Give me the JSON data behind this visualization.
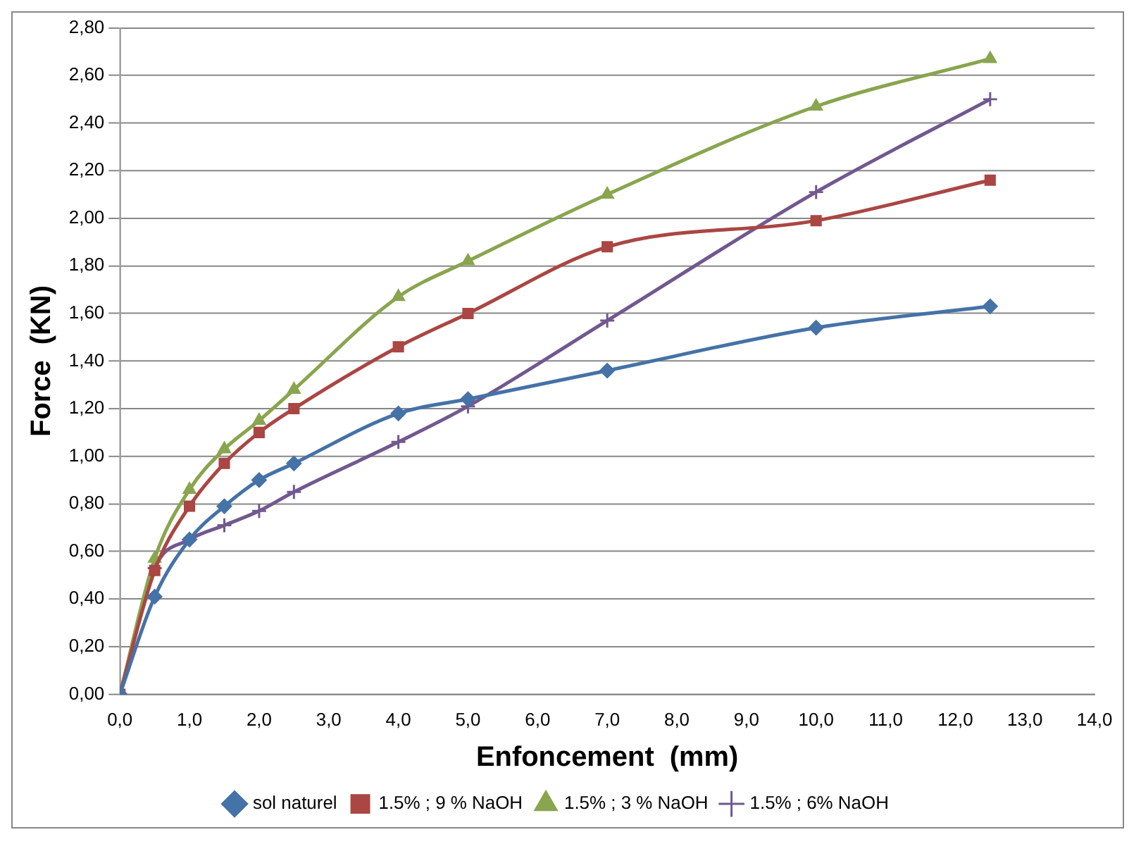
{
  "chart_data": {
    "type": "line",
    "xlabel": "Enfoncement  (mm)",
    "ylabel": "Force  (KN)",
    "x": [
      0,
      0.5,
      1,
      1.5,
      2,
      2.5,
      4,
      5,
      7,
      10,
      12.5
    ],
    "series": [
      {
        "name": "sol naturel",
        "color": "#4572a7",
        "marker": "diamond",
        "values": [
          0,
          0.41,
          0.65,
          0.79,
          0.9,
          0.97,
          1.18,
          1.24,
          1.36,
          1.54,
          1.63
        ]
      },
      {
        "name": "1.5% ; 9 % NaOH",
        "color": "#aa4643",
        "marker": "square",
        "values": [
          0,
          0.52,
          0.79,
          0.97,
          1.1,
          1.2,
          1.46,
          1.6,
          1.88,
          1.99,
          2.16
        ]
      },
      {
        "name": "1.5% ; 3 % NaOH",
        "color": "#89a54e",
        "marker": "triangle",
        "values": [
          0,
          0.57,
          0.86,
          1.03,
          1.15,
          1.28,
          1.67,
          1.82,
          2.1,
          2.47,
          2.67
        ]
      },
      {
        "name": "1.5% ; 6% NaOH",
        "color": "#71588f",
        "marker": "cross",
        "values": [
          0,
          0.53,
          0.65,
          0.71,
          0.77,
          0.85,
          1.06,
          1.21,
          1.57,
          2.11,
          2.5
        ]
      }
    ],
    "xlim": [
      0,
      14
    ],
    "xticks": [
      {
        "value": 0,
        "label": "0,0"
      },
      {
        "value": 1,
        "label": "1,0"
      },
      {
        "value": 2,
        "label": "2,0"
      },
      {
        "value": 3,
        "label": "3,0"
      },
      {
        "value": 4,
        "label": "4,0"
      },
      {
        "value": 5,
        "label": "5,0"
      },
      {
        "value": 6,
        "label": "6,0"
      },
      {
        "value": 7,
        "label": "7,0"
      },
      {
        "value": 8,
        "label": "8,0"
      },
      {
        "value": 9,
        "label": "9,0"
      },
      {
        "value": 10,
        "label": "10,0"
      },
      {
        "value": 11,
        "label": "11,0"
      },
      {
        "value": 12,
        "label": "12,0"
      },
      {
        "value": 13,
        "label": "13,0"
      },
      {
        "value": 14,
        "label": "14,0"
      }
    ],
    "ylim": [
      0,
      2.8
    ],
    "yticks": [
      {
        "value": 0,
        "label": "0,00"
      },
      {
        "value": 0.2,
        "label": "0,20"
      },
      {
        "value": 0.4,
        "label": "0,40"
      },
      {
        "value": 0.6,
        "label": "0,60"
      },
      {
        "value": 0.8,
        "label": "0,80"
      },
      {
        "value": 1,
        "label": "1,00"
      },
      {
        "value": 1.2,
        "label": "1,20"
      },
      {
        "value": 1.4,
        "label": "1,40"
      },
      {
        "value": 1.6,
        "label": "1,60"
      },
      {
        "value": 1.8,
        "label": "1,80"
      },
      {
        "value": 2,
        "label": "2,00"
      },
      {
        "value": 2.2,
        "label": "2,20"
      },
      {
        "value": 2.4,
        "label": "2,40"
      },
      {
        "value": 2.6,
        "label": "2,60"
      },
      {
        "value": 2.8,
        "label": "2,80"
      }
    ],
    "grid": "y",
    "legend": "bottom"
  }
}
